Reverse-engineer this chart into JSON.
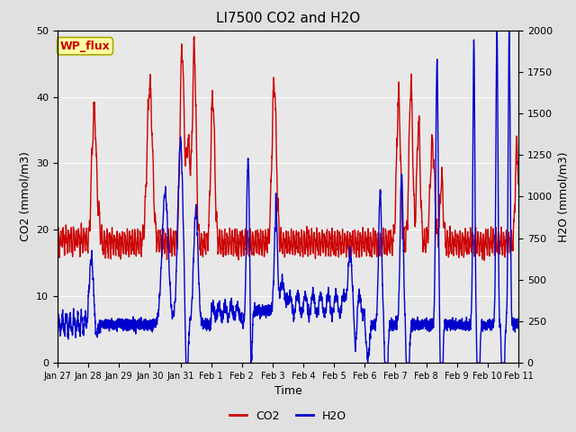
{
  "title": "LI7500 CO2 and H2O",
  "xlabel": "Time",
  "ylabel_left": "CO2 (mmol/m3)",
  "ylabel_right": "H2O (mmol/m3)",
  "annotation": "WP_flux",
  "co2_ylim": [
    0,
    50
  ],
  "h2o_ylim": [
    0,
    2000
  ],
  "co2_color": "#cc0000",
  "h2o_color": "#0000cc",
  "background_color": "#e0e0e0",
  "plot_bg_color": "#e8e8e8",
  "grid_color": "#ffffff",
  "title_fontsize": 11,
  "axis_fontsize": 9,
  "tick_fontsize": 8,
  "legend_fontsize": 9,
  "annotation_bg": "#ffffa0",
  "annotation_border": "#aaaa00",
  "x_tick_labels": [
    "Jan 27",
    "Jan 28",
    "Jan 29",
    "Jan 30",
    "Jan 31",
    "Feb 1",
    "Feb 2",
    "Feb 3",
    "Feb 4",
    "Feb 5",
    "Feb 6",
    "Feb 7",
    "Feb 8",
    "Feb 9",
    "Feb 10",
    "Feb 11"
  ],
  "n_points": 3360,
  "co2_lw": 1.0,
  "h2o_lw": 1.0
}
